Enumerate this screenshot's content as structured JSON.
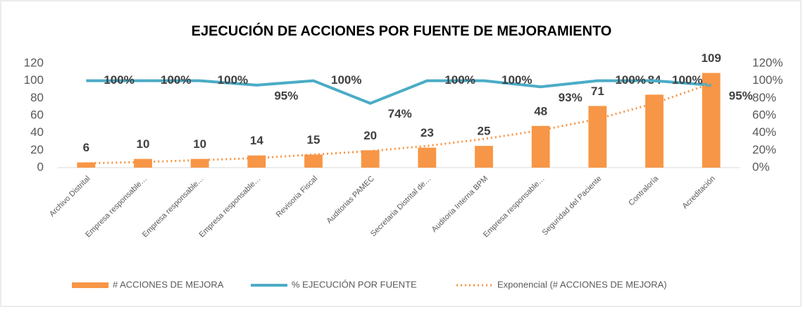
{
  "chart_data": {
    "type": "bar-line",
    "title": "EJECUCIÓN DE ACCIONES POR FUENTE DE MEJORAMIENTO",
    "categories": [
      "Archivo Distrital",
      "Empresa responsable…",
      "Empresa responsable…",
      "Empresa responsable…",
      "Revisoria Fiscal",
      "Auditorias PAMEC",
      "Secretaria Distrital de…",
      "Auditoria Interna BPM",
      "Empresa responsable…",
      "Seguridad del Paciente",
      "Contraloría",
      "Acreditación"
    ],
    "series": [
      {
        "name": "# ACCIONES DE MEJORA",
        "type": "bar",
        "color": "#f79646",
        "values": [
          6,
          10,
          10,
          14,
          15,
          20,
          23,
          25,
          48,
          71,
          84,
          109
        ]
      },
      {
        "name": "% EJECUCIÓN  POR FUENTE",
        "type": "line",
        "axis": "y2",
        "color": "#4bacc6",
        "values": [
          100,
          100,
          100,
          95,
          100,
          74,
          100,
          100,
          93,
          100,
          100,
          95
        ],
        "value_labels": [
          "100%",
          "100%",
          "100%",
          "95%",
          "100%",
          "74%",
          "100%",
          "100%",
          "93%",
          "100%",
          "100%",
          "95%"
        ]
      },
      {
        "name": "Exponencial (# ACCIONES DE MEJORA)",
        "type": "trend",
        "color": "#f79646",
        "values": [
          5,
          6.5,
          8.6,
          11,
          15,
          19,
          25,
          33,
          43,
          56,
          74,
          97
        ]
      }
    ],
    "ylim": [
      0,
      120
    ],
    "yticks": [
      0,
      20,
      40,
      60,
      80,
      100,
      120
    ],
    "y2lim": [
      0,
      120
    ],
    "y2ticks": [
      {
        "value": 0,
        "label": "0%"
      },
      {
        "value": 20,
        "label": "20%"
      },
      {
        "value": 40,
        "label": "40%"
      },
      {
        "value": 60,
        "label": "60%"
      },
      {
        "value": 80,
        "label": "80%"
      },
      {
        "value": 100,
        "label": "100%"
      },
      {
        "value": 120,
        "label": "120%"
      }
    ],
    "legend": "bottom"
  }
}
